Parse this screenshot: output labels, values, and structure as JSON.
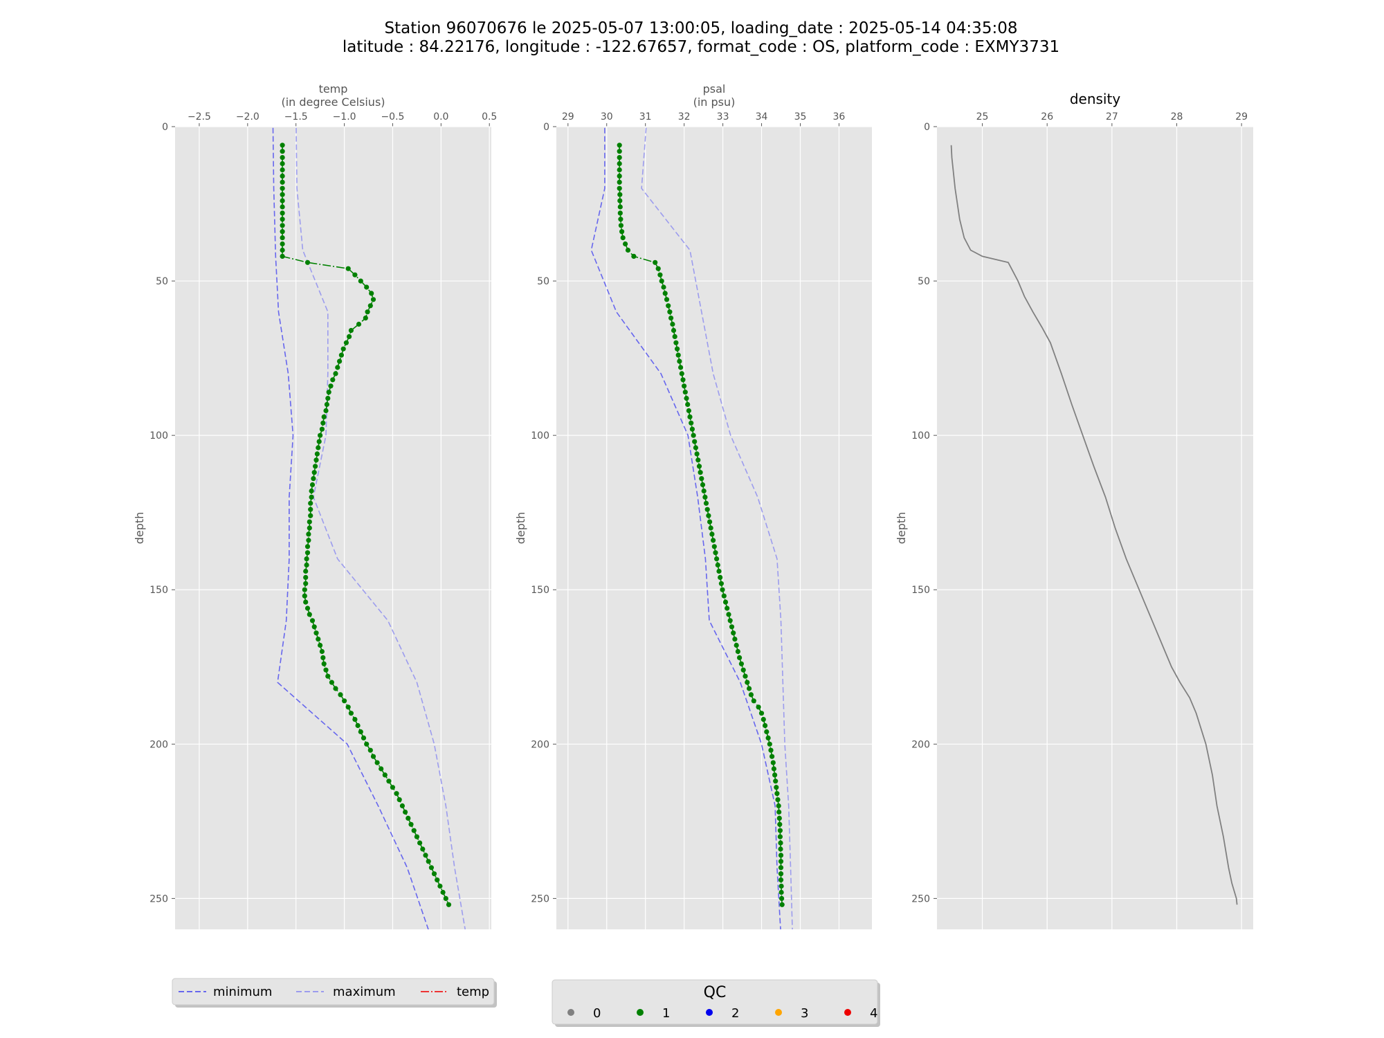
{
  "title": {
    "line1": "Station 96070676 le 2025-05-07 13:00:05, loading_date : 2025-05-14 04:35:08",
    "line2": "latitude : 84.22176, longitude : -122.67657, format_code : OS, platform_code : EXMY3731"
  },
  "colors": {
    "minimum": "#6666ee",
    "maximum": "#9c9cee",
    "measured": "#008000",
    "density": "#808080",
    "panel_bg": "#e5e5e5",
    "grid": "#ffffff"
  },
  "chart_data": [
    {
      "type": "line",
      "title": "",
      "xlabel": "temp",
      "xlabel_unit": "(in degree Celsius)",
      "ylabel": "depth",
      "xlim": [
        -2.75,
        0.52
      ],
      "ylim": [
        260,
        0
      ],
      "xticks": [
        "−2.5",
        "−2.0",
        "−1.5",
        "−1.0",
        "−0.5",
        "0.0",
        "0.5"
      ],
      "xtick_values": [
        -2.5,
        -2.0,
        -1.5,
        -1.0,
        -0.5,
        0.0,
        0.5
      ],
      "yticks": [
        "0",
        "50",
        "100",
        "150",
        "200",
        "250"
      ],
      "ytick_values": [
        0,
        50,
        100,
        150,
        200,
        250
      ],
      "grid": true,
      "series": [
        {
          "name": "minimum",
          "style": "dashed",
          "depth": [
            -5,
            20,
            42,
            60,
            80,
            100,
            120,
            140,
            160,
            180,
            200,
            220,
            240,
            262
          ],
          "values": [
            -1.74,
            -1.73,
            -1.71,
            -1.68,
            -1.58,
            -1.53,
            -1.57,
            -1.57,
            -1.6,
            -1.69,
            -0.97,
            -0.65,
            -0.35,
            -0.11
          ]
        },
        {
          "name": "maximum",
          "style": "dashed",
          "depth": [
            -5,
            20,
            40,
            60,
            80,
            100,
            120,
            140,
            160,
            180,
            200,
            220,
            240,
            262
          ],
          "values": [
            -1.5,
            -1.49,
            -1.43,
            -1.17,
            -1.17,
            -1.19,
            -1.32,
            -1.07,
            -0.55,
            -0.25,
            -0.07,
            0.05,
            0.14,
            0.26
          ]
        },
        {
          "name": "temp",
          "style": "dashdot",
          "qc": 1,
          "depth": [
            6,
            8,
            10,
            12,
            14,
            16,
            18,
            20,
            22,
            24,
            26,
            28,
            30,
            32,
            34,
            36,
            38,
            40,
            42,
            44,
            46,
            48,
            50,
            52,
            54,
            56,
            58,
            60,
            62,
            64,
            66,
            68,
            70,
            72,
            74,
            76,
            78,
            80,
            82,
            84,
            86,
            88,
            90,
            92,
            94,
            96,
            98,
            100,
            102,
            104,
            106,
            108,
            110,
            112,
            114,
            116,
            118,
            120,
            122,
            124,
            126,
            128,
            130,
            132,
            134,
            136,
            138,
            140,
            142,
            144,
            146,
            148,
            150,
            152,
            154,
            156,
            158,
            160,
            162,
            164,
            166,
            168,
            170,
            172,
            174,
            176,
            178,
            180,
            182,
            184,
            186,
            188,
            190,
            192,
            194,
            196,
            198,
            200,
            202,
            204,
            206,
            208,
            210,
            212,
            214,
            216,
            218,
            220,
            222,
            224,
            226,
            228,
            230,
            232,
            234,
            236,
            238,
            240,
            242,
            244,
            246,
            248,
            250,
            252
          ],
          "values": [
            -1.64,
            -1.64,
            -1.64,
            -1.64,
            -1.64,
            -1.64,
            -1.64,
            -1.64,
            -1.64,
            -1.64,
            -1.64,
            -1.64,
            -1.64,
            -1.64,
            -1.64,
            -1.64,
            -1.64,
            -1.64,
            -1.64,
            -1.38,
            -0.96,
            -0.89,
            -0.83,
            -0.77,
            -0.72,
            -0.7,
            -0.73,
            -0.76,
            -0.78,
            -0.85,
            -0.93,
            -0.95,
            -0.98,
            -1.01,
            -1.03,
            -1.05,
            -1.07,
            -1.09,
            -1.12,
            -1.14,
            -1.16,
            -1.17,
            -1.18,
            -1.19,
            -1.21,
            -1.22,
            -1.23,
            -1.25,
            -1.26,
            -1.27,
            -1.28,
            -1.29,
            -1.3,
            -1.31,
            -1.32,
            -1.33,
            -1.34,
            -1.34,
            -1.35,
            -1.35,
            -1.35,
            -1.36,
            -1.36,
            -1.37,
            -1.37,
            -1.38,
            -1.38,
            -1.39,
            -1.39,
            -1.4,
            -1.4,
            -1.4,
            -1.41,
            -1.41,
            -1.4,
            -1.38,
            -1.36,
            -1.33,
            -1.31,
            -1.29,
            -1.27,
            -1.25,
            -1.23,
            -1.22,
            -1.21,
            -1.19,
            -1.17,
            -1.13,
            -1.09,
            -1.04,
            -1.0,
            -0.96,
            -0.93,
            -0.89,
            -0.86,
            -0.83,
            -0.8,
            -0.77,
            -0.73,
            -0.7,
            -0.66,
            -0.62,
            -0.58,
            -0.54,
            -0.5,
            -0.46,
            -0.43,
            -0.4,
            -0.37,
            -0.34,
            -0.31,
            -0.28,
            -0.25,
            -0.22,
            -0.19,
            -0.16,
            -0.13,
            -0.1,
            -0.07,
            -0.04,
            -0.01,
            0.02,
            0.05,
            0.08
          ]
        }
      ]
    },
    {
      "type": "line",
      "title": "",
      "xlabel": "psal",
      "xlabel_unit": "(in psu)",
      "ylabel": "depth",
      "xlim": [
        28.7,
        36.85
      ],
      "ylim": [
        260,
        0
      ],
      "xticks": [
        "29",
        "30",
        "31",
        "32",
        "33",
        "34",
        "35",
        "36"
      ],
      "xtick_values": [
        29,
        30,
        31,
        32,
        33,
        34,
        35,
        36
      ],
      "yticks": [
        "0",
        "50",
        "100",
        "150",
        "200",
        "250"
      ],
      "ytick_values": [
        0,
        50,
        100,
        150,
        200,
        250
      ],
      "grid": true,
      "series": [
        {
          "name": "minimum",
          "style": "dashed",
          "depth": [
            -5,
            20,
            40,
            60,
            80,
            100,
            120,
            140,
            160,
            180,
            200,
            220,
            240,
            262
          ],
          "values": [
            29.95,
            29.95,
            29.6,
            30.25,
            31.4,
            32.1,
            32.35,
            32.55,
            32.65,
            33.45,
            34.0,
            34.35,
            34.4,
            34.5
          ]
        },
        {
          "name": "maximum",
          "style": "dashed",
          "depth": [
            -5,
            20,
            40,
            60,
            80,
            100,
            120,
            140,
            160,
            180,
            200,
            220,
            240,
            262
          ],
          "values": [
            31.05,
            30.9,
            32.15,
            32.45,
            32.75,
            33.2,
            33.9,
            34.4,
            34.5,
            34.55,
            34.6,
            34.7,
            34.75,
            34.8
          ]
        },
        {
          "name": "psal",
          "style": "dashdot",
          "qc": 1,
          "depth": [
            6,
            8,
            10,
            12,
            14,
            16,
            18,
            20,
            22,
            24,
            26,
            28,
            30,
            32,
            34,
            36,
            38,
            40,
            42,
            44,
            46,
            48,
            50,
            52,
            54,
            56,
            58,
            60,
            62,
            64,
            66,
            68,
            70,
            72,
            74,
            76,
            78,
            80,
            82,
            84,
            86,
            88,
            90,
            92,
            94,
            96,
            98,
            100,
            102,
            104,
            106,
            108,
            110,
            112,
            114,
            116,
            118,
            120,
            122,
            124,
            126,
            128,
            130,
            132,
            134,
            136,
            138,
            140,
            142,
            144,
            146,
            148,
            150,
            152,
            154,
            156,
            158,
            160,
            162,
            164,
            166,
            168,
            170,
            172,
            174,
            176,
            178,
            180,
            182,
            184,
            186,
            188,
            190,
            192,
            194,
            196,
            198,
            200,
            202,
            204,
            206,
            208,
            210,
            212,
            214,
            216,
            218,
            220,
            222,
            224,
            226,
            228,
            230,
            232,
            234,
            236,
            238,
            240,
            242,
            244,
            246,
            248,
            250,
            252
          ],
          "values": [
            30.33,
            30.33,
            30.33,
            30.33,
            30.33,
            30.33,
            30.33,
            30.33,
            30.34,
            30.34,
            30.35,
            30.35,
            30.36,
            30.37,
            30.39,
            30.42,
            30.48,
            30.55,
            30.7,
            31.25,
            31.33,
            31.38,
            31.42,
            31.47,
            31.51,
            31.55,
            31.59,
            31.63,
            31.66,
            31.7,
            31.73,
            31.76,
            31.79,
            31.82,
            31.85,
            31.88,
            31.91,
            31.94,
            31.97,
            32.0,
            32.03,
            32.06,
            32.09,
            32.12,
            32.15,
            32.18,
            32.21,
            32.24,
            32.27,
            32.3,
            32.33,
            32.36,
            32.39,
            32.42,
            32.45,
            32.48,
            32.51,
            32.54,
            32.57,
            32.6,
            32.63,
            32.66,
            32.69,
            32.72,
            32.75,
            32.78,
            32.81,
            32.84,
            32.87,
            32.9,
            32.93,
            32.96,
            32.99,
            33.03,
            33.07,
            33.11,
            33.15,
            33.19,
            33.23,
            33.27,
            33.31,
            33.35,
            33.39,
            33.43,
            33.48,
            33.53,
            33.58,
            33.63,
            33.68,
            33.73,
            33.8,
            33.92,
            34.0,
            34.05,
            34.09,
            34.13,
            34.17,
            34.21,
            34.24,
            34.27,
            34.3,
            34.32,
            34.34,
            34.36,
            34.38,
            34.4,
            34.42,
            34.44,
            34.45,
            34.46,
            34.47,
            34.48,
            34.48,
            34.49,
            34.49,
            34.5,
            34.5,
            34.5,
            34.5,
            34.5,
            34.51,
            34.51,
            34.52,
            34.53
          ]
        }
      ]
    },
    {
      "type": "line",
      "title": "density",
      "xlabel": "",
      "ylabel": "depth",
      "xlim": [
        24.3,
        29.18
      ],
      "ylim": [
        260,
        0
      ],
      "xticks": [
        "25",
        "26",
        "27",
        "28",
        "29"
      ],
      "xtick_values": [
        25,
        26,
        27,
        28,
        29
      ],
      "yticks": [
        "0",
        "50",
        "100",
        "150",
        "200",
        "250"
      ],
      "ytick_values": [
        0,
        50,
        100,
        150,
        200,
        250
      ],
      "grid": true,
      "series": [
        {
          "name": "density",
          "style": "solid",
          "depth": [
            6,
            10,
            20,
            30,
            36,
            40,
            42,
            44,
            46,
            50,
            55,
            60,
            65,
            70,
            80,
            90,
            100,
            110,
            120,
            130,
            140,
            150,
            160,
            170,
            175,
            180,
            185,
            190,
            200,
            210,
            220,
            230,
            240,
            245,
            250,
            252
          ],
          "values": [
            24.52,
            24.53,
            24.58,
            24.65,
            24.72,
            24.82,
            25.0,
            25.4,
            25.45,
            25.55,
            25.65,
            25.78,
            25.92,
            26.05,
            26.22,
            26.38,
            26.55,
            26.72,
            26.9,
            27.05,
            27.22,
            27.42,
            27.62,
            27.82,
            27.92,
            28.05,
            28.2,
            28.3,
            28.45,
            28.55,
            28.62,
            28.72,
            28.8,
            28.85,
            28.92,
            28.93
          ]
        }
      ]
    }
  ],
  "legend_profile": {
    "minimum": "minimum",
    "maximum": "maximum",
    "measured": "temp",
    "placement": "bottom-left"
  },
  "legend_qc": {
    "title": "QC",
    "placement": "bottom-center",
    "items": [
      {
        "label": "0",
        "color": "#808080"
      },
      {
        "label": "1",
        "color": "#008000"
      },
      {
        "label": "2",
        "color": "#0000ee"
      },
      {
        "label": "3",
        "color": "#ffa500"
      },
      {
        "label": "4",
        "color": "#ee0000"
      }
    ]
  }
}
